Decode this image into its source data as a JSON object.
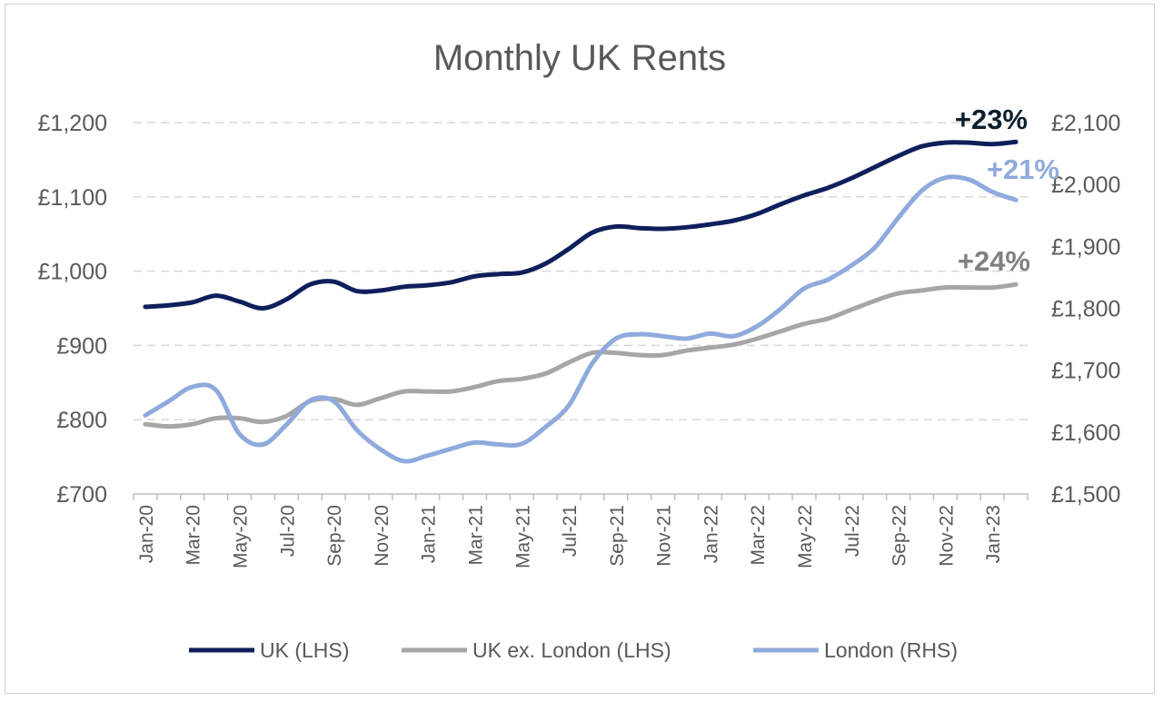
{
  "chart_data": {
    "type": "line",
    "title": "Monthly UK Rents",
    "xlabel": "",
    "ylabel": "",
    "y_left": {
      "ylim": [
        700,
        1200
      ],
      "ticks": [
        "£700",
        "£800",
        "£900",
        "£1,000",
        "£1,100",
        "£1,200"
      ],
      "tick_values": [
        700,
        800,
        900,
        1000,
        1100,
        1200
      ]
    },
    "y_right": {
      "ylim": [
        1500,
        2100
      ],
      "ticks": [
        "£1,500",
        "£1,600",
        "£1,700",
        "£1,800",
        "£1,900",
        "£2,000",
        "£2,100"
      ],
      "tick_values": [
        1500,
        1600,
        1700,
        1800,
        1900,
        2000,
        2100
      ]
    },
    "x_tick_labels": [
      "Jan-20",
      "Mar-20",
      "May-20",
      "Jul-20",
      "Sep-20",
      "Nov-20",
      "Jan-21",
      "Mar-21",
      "May-21",
      "Jul-21",
      "Sep-21",
      "Nov-21",
      "Jan-22",
      "Mar-22",
      "May-22",
      "Jul-22",
      "Sep-22",
      "Nov-22",
      "Jan-23"
    ],
    "x": [
      "Jan-20",
      "Feb-20",
      "Mar-20",
      "Apr-20",
      "May-20",
      "Jun-20",
      "Jul-20",
      "Aug-20",
      "Sep-20",
      "Oct-20",
      "Nov-20",
      "Dec-20",
      "Jan-21",
      "Feb-21",
      "Mar-21",
      "Apr-21",
      "May-21",
      "Jun-21",
      "Jul-21",
      "Aug-21",
      "Sep-21",
      "Oct-21",
      "Nov-21",
      "Dec-21",
      "Jan-22",
      "Feb-22",
      "Mar-22",
      "Apr-22",
      "May-22",
      "Jun-22",
      "Jul-22",
      "Aug-22",
      "Sep-22",
      "Oct-22",
      "Nov-22",
      "Dec-22",
      "Jan-23",
      "Feb-23"
    ],
    "grid": true,
    "legend_position": "bottom",
    "series": [
      {
        "name": "UK (LHS)",
        "axis": "left",
        "color": "#0f1f5c",
        "values": [
          952,
          954,
          958,
          967,
          959,
          950,
          962,
          982,
          986,
          973,
          974,
          979,
          981,
          985,
          993,
          996,
          998,
          1010,
          1030,
          1052,
          1060,
          1058,
          1057,
          1059,
          1063,
          1068,
          1077,
          1090,
          1102,
          1112,
          1125,
          1140,
          1155,
          1168,
          1173,
          1173,
          1171,
          1174
        ]
      },
      {
        "name": "UK ex. London (LHS)",
        "axis": "left",
        "color": "#a6a6a6",
        "values": [
          794,
          791,
          794,
          802,
          802,
          797,
          805,
          825,
          828,
          820,
          829,
          838,
          838,
          838,
          844,
          852,
          855,
          862,
          877,
          890,
          890,
          887,
          887,
          893,
          897,
          901,
          909,
          919,
          929,
          936,
          948,
          960,
          970,
          974,
          978,
          978,
          978,
          982
        ]
      },
      {
        "name": "London (RHS)",
        "axis": "right",
        "color": "#8faadc",
        "values": [
          1627,
          1650,
          1673,
          1668,
          1597,
          1580,
          1612,
          1651,
          1650,
          1603,
          1572,
          1553,
          1562,
          1573,
          1583,
          1580,
          1581,
          1608,
          1643,
          1711,
          1751,
          1758,
          1755,
          1751,
          1759,
          1755,
          1771,
          1799,
          1832,
          1846,
          1869,
          1898,
          1946,
          1990,
          2011,
          2008,
          1988,
          1975
        ]
      }
    ],
    "annotations": [
      {
        "text": "+23%",
        "color": "#0d1f2d"
      },
      {
        "text": "+21%",
        "color": "#8faadc"
      },
      {
        "text": "+24%",
        "color": "#808080"
      }
    ]
  }
}
